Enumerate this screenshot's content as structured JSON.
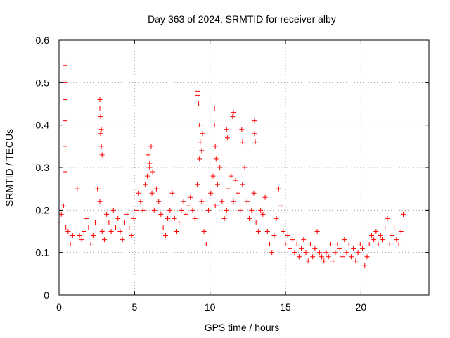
{
  "chart_data": {
    "type": "scatter",
    "title": "Day 363 of 2024, SRMTID for receiver alby",
    "xlabel": "GPS time / hours",
    "ylabel": "SRMTID / TECUs",
    "xlim": [
      0,
      24.5
    ],
    "ylim": [
      0,
      0.6
    ],
    "xticks": [
      0,
      5,
      10,
      15,
      20
    ],
    "xtick_labels": [
      "0",
      "5",
      "10",
      "15",
      "20"
    ],
    "yticks": [
      0,
      0.1,
      0.2,
      0.3,
      0.4,
      0.5,
      0.6
    ],
    "ytick_labels": [
      "0",
      "0.1",
      "0.2",
      "0.3",
      "0.4",
      "0.5",
      "0.6"
    ],
    "grid": true,
    "marker": "plus",
    "series": [
      {
        "name": "SRMTID",
        "color": "#ff0000",
        "x": [
          0.0,
          0.15,
          0.3,
          0.45,
          0.6,
          0.75,
          0.9,
          1.05,
          1.2,
          1.35,
          1.5,
          1.65,
          1.8,
          1.95,
          2.1,
          2.25,
          2.4,
          2.55,
          2.7,
          2.85,
          3.0,
          3.15,
          3.3,
          3.45,
          3.6,
          3.75,
          3.9,
          4.05,
          4.2,
          4.35,
          4.5,
          4.65,
          4.8,
          4.95,
          5.1,
          5.25,
          5.4,
          5.55,
          5.7,
          5.85,
          6.0,
          6.15,
          6.3,
          6.45,
          6.6,
          6.75,
          6.9,
          7.05,
          7.2,
          7.35,
          7.5,
          7.65,
          7.8,
          7.95,
          8.1,
          8.25,
          8.4,
          8.55,
          8.7,
          8.85,
          9.0,
          9.15,
          9.3,
          9.45,
          9.6,
          9.75,
          9.9,
          10.05,
          10.2,
          10.35,
          10.5,
          10.65,
          10.8,
          10.95,
          11.1,
          11.25,
          11.4,
          11.55,
          11.7,
          11.85,
          12.0,
          12.15,
          12.3,
          12.45,
          12.6,
          12.75,
          12.9,
          13.05,
          13.2,
          13.35,
          13.5,
          13.65,
          13.8,
          13.95,
          14.1,
          14.25,
          14.4,
          14.55,
          14.7,
          14.85,
          15.0,
          15.15,
          15.3,
          15.45,
          15.6,
          15.75,
          15.9,
          16.05,
          16.2,
          16.35,
          16.5,
          16.65,
          16.8,
          16.95,
          17.1,
          17.25,
          17.4,
          17.55,
          17.7,
          17.85,
          18.0,
          18.15,
          18.3,
          18.45,
          18.6,
          18.75,
          18.9,
          19.05,
          19.2,
          19.35,
          19.5,
          19.65,
          19.8,
          19.95,
          20.1,
          20.25,
          20.4,
          20.55,
          20.7,
          20.85,
          21.0,
          21.15,
          21.3,
          21.45,
          21.6,
          21.75,
          21.9,
          22.05,
          22.2,
          22.35,
          22.5,
          22.65,
          22.8,
          0.4,
          0.4,
          0.4,
          0.4,
          0.4,
          0.4,
          2.7,
          2.7,
          2.75,
          2.75,
          2.8,
          2.8,
          2.85,
          9.2,
          9.2,
          9.25,
          9.3,
          9.35,
          9.45,
          9.5,
          10.3,
          10.3,
          10.35,
          10.4,
          11.1,
          11.15,
          11.5,
          11.55,
          12.1,
          12.15,
          12.95,
          12.95,
          13.0,
          5.9,
          6.0,
          6.1,
          6.2
        ],
        "y": [
          0.17,
          0.19,
          0.21,
          0.16,
          0.15,
          0.12,
          0.14,
          0.16,
          0.25,
          0.14,
          0.13,
          0.15,
          0.18,
          0.16,
          0.12,
          0.14,
          0.17,
          0.25,
          0.22,
          0.15,
          0.13,
          0.19,
          0.17,
          0.15,
          0.2,
          0.16,
          0.18,
          0.15,
          0.13,
          0.17,
          0.19,
          0.16,
          0.14,
          0.18,
          0.2,
          0.24,
          0.22,
          0.2,
          0.26,
          0.28,
          0.3,
          0.24,
          0.2,
          0.25,
          0.22,
          0.19,
          0.16,
          0.14,
          0.18,
          0.2,
          0.24,
          0.18,
          0.15,
          0.17,
          0.2,
          0.22,
          0.19,
          0.21,
          0.23,
          0.2,
          0.18,
          0.26,
          0.32,
          0.22,
          0.15,
          0.12,
          0.2,
          0.24,
          0.28,
          0.21,
          0.26,
          0.3,
          0.22,
          0.18,
          0.2,
          0.25,
          0.28,
          0.22,
          0.27,
          0.24,
          0.2,
          0.26,
          0.3,
          0.22,
          0.18,
          0.2,
          0.24,
          0.17,
          0.15,
          0.2,
          0.19,
          0.23,
          0.15,
          0.12,
          0.1,
          0.14,
          0.18,
          0.25,
          0.21,
          0.15,
          0.12,
          0.14,
          0.11,
          0.13,
          0.1,
          0.12,
          0.09,
          0.11,
          0.13,
          0.1,
          0.08,
          0.12,
          0.09,
          0.11,
          0.15,
          0.1,
          0.09,
          0.08,
          0.1,
          0.09,
          0.12,
          0.08,
          0.1,
          0.12,
          0.11,
          0.09,
          0.13,
          0.1,
          0.12,
          0.09,
          0.11,
          0.08,
          0.1,
          0.12,
          0.11,
          0.07,
          0.09,
          0.12,
          0.14,
          0.13,
          0.15,
          0.12,
          0.14,
          0.13,
          0.16,
          0.18,
          0.12,
          0.14,
          0.16,
          0.13,
          0.12,
          0.15,
          0.19,
          0.54,
          0.5,
          0.46,
          0.41,
          0.35,
          0.29,
          0.46,
          0.44,
          0.42,
          0.38,
          0.39,
          0.35,
          0.33,
          0.48,
          0.47,
          0.45,
          0.4,
          0.36,
          0.34,
          0.38,
          0.44,
          0.4,
          0.35,
          0.32,
          0.39,
          0.37,
          0.42,
          0.43,
          0.39,
          0.36,
          0.41,
          0.38,
          0.36,
          0.33,
          0.31,
          0.35,
          0.29
        ]
      }
    ]
  }
}
